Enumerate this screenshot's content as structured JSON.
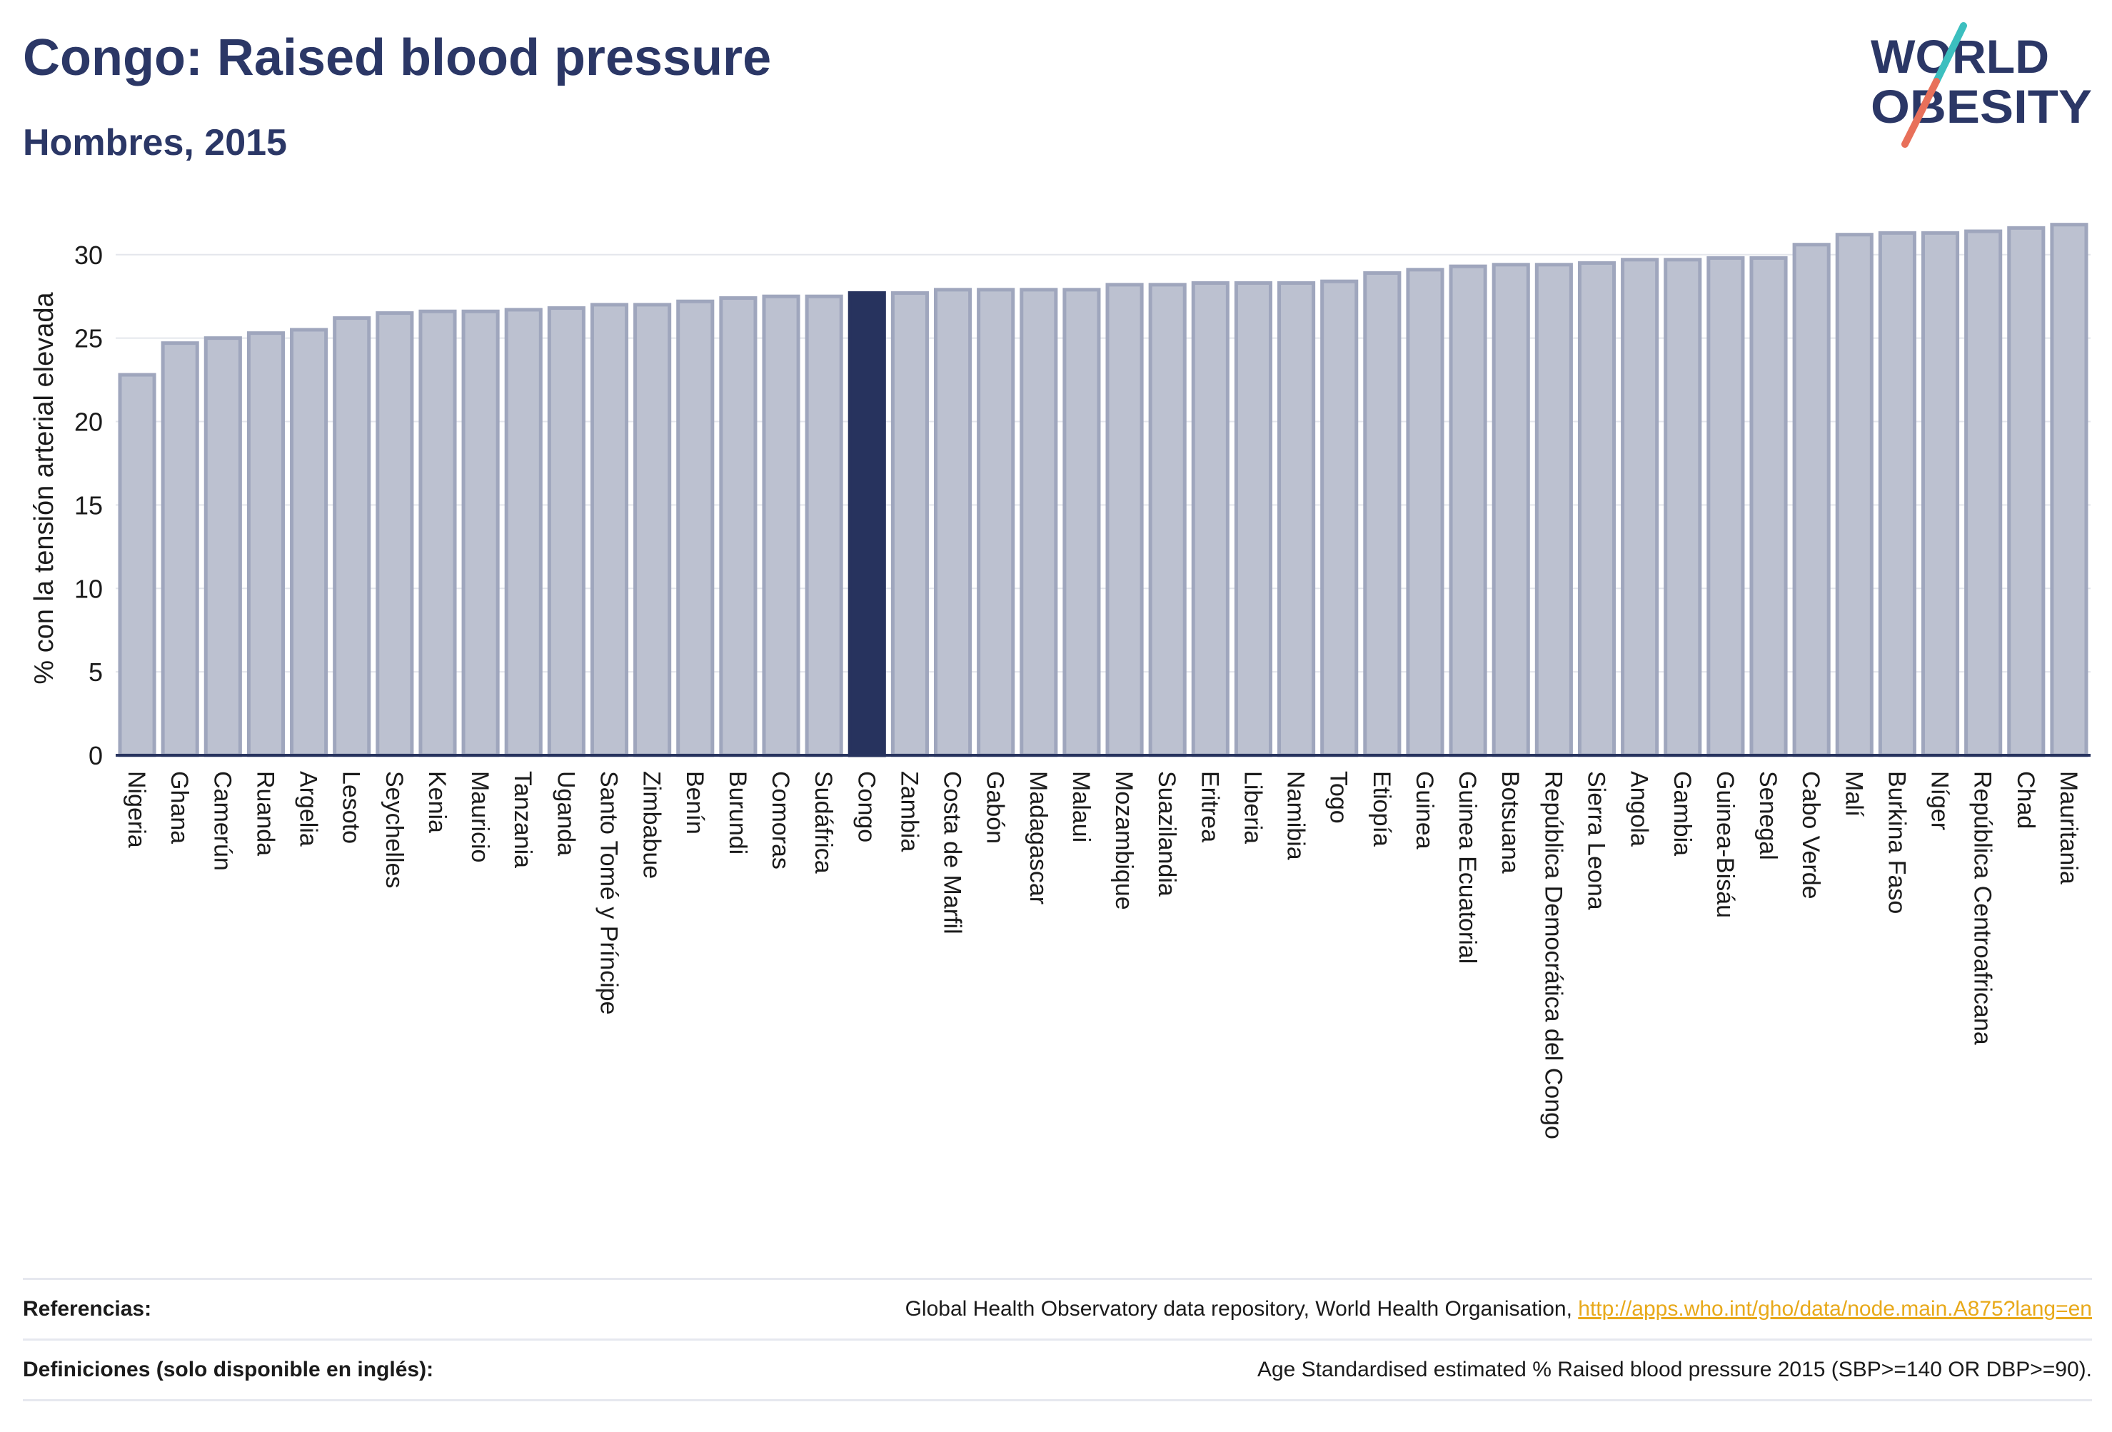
{
  "header": {
    "title": "Congo: Raised blood pressure",
    "subtitle": "Hombres, 2015"
  },
  "logo": {
    "line1": "WORLD",
    "line2": "OBESITY"
  },
  "colors": {
    "bar": "#bcc1d0",
    "bar_border": "#9fa6bd",
    "highlight": "#27335e",
    "title": "#2b3766",
    "link": "#e8a91a",
    "logo_teal": "#3cbfbf",
    "logo_red": "#e8705a"
  },
  "chart_data": {
    "type": "bar",
    "title": "Congo: Raised blood pressure",
    "subtitle": "Hombres, 2015",
    "xlabel": "",
    "ylabel": "% con la tensión arterial elevada",
    "ylim": [
      0,
      32
    ],
    "yticks": [
      0,
      5,
      10,
      15,
      20,
      25,
      30
    ],
    "grid": true,
    "highlight": "Congo",
    "categories": [
      "Nigeria",
      "Ghana",
      "Camerún",
      "Ruanda",
      "Argelia",
      "Lesoto",
      "Seychelles",
      "Kenia",
      "Mauricio",
      "Tanzania",
      "Uganda",
      "Santo Tomé y Príncipe",
      "Zimbabue",
      "Benín",
      "Burundi",
      "Comoras",
      "Sudáfrica",
      "Congo",
      "Zambia",
      "Costa de Marfil",
      "Gabón",
      "Madagascar",
      "Malaui",
      "Mozambique",
      "Suazilandia",
      "Eritrea",
      "Liberia",
      "Namibia",
      "Togo",
      "Etiopía",
      "Guinea",
      "Guinea Ecuatorial",
      "Botsuana",
      "República Democrática del Congo",
      "Sierra Leona",
      "Angola",
      "Gambia",
      "Guinea-Bisáu",
      "Senegal",
      "Cabo Verde",
      "Malí",
      "Burkina Faso",
      "Níger",
      "República Centroafricana",
      "Chad",
      "Mauritania"
    ],
    "values": [
      22.8,
      24.7,
      25.0,
      25.3,
      25.5,
      26.2,
      26.5,
      26.6,
      26.6,
      26.7,
      26.8,
      27.0,
      27.0,
      27.2,
      27.4,
      27.5,
      27.5,
      27.7,
      27.7,
      27.9,
      27.9,
      27.9,
      27.9,
      28.2,
      28.2,
      28.3,
      28.3,
      28.3,
      28.4,
      28.9,
      29.1,
      29.3,
      29.4,
      29.4,
      29.5,
      29.7,
      29.7,
      29.8,
      29.8,
      30.6,
      31.2,
      31.3,
      31.3,
      31.4,
      31.6,
      31.8
    ]
  },
  "footer": {
    "references_label": "Referencias:",
    "references_text": "Global Health Observatory data repository, World Health Organisation, ",
    "references_link": "http://apps.who.int/gho/data/node.main.A875?lang=en",
    "definitions_label": "Definiciones (solo disponible en inglés):",
    "definitions_text": "Age Standardised estimated % Raised blood pressure 2015 (SBP>=140 OR DBP>=90)."
  }
}
